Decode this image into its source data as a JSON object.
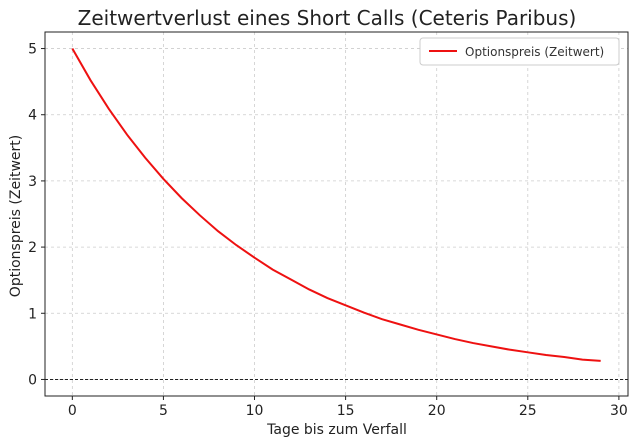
{
  "chart_data": {
    "type": "line",
    "title": "Zeitwertverlust eines Short Calls (Ceteris Paribus)",
    "xlabel": "Tage bis zum Verfall",
    "ylabel": "Optionspreis (Zeitwert)",
    "xlim": [
      -1.5,
      30.5
    ],
    "ylim": [
      -0.25,
      5.25
    ],
    "xticks": [
      0,
      5,
      10,
      15,
      20,
      25,
      30
    ],
    "yticks": [
      0,
      1,
      2,
      3,
      4,
      5
    ],
    "grid": true,
    "legend_position": "top-right",
    "reference_line": {
      "y": 0,
      "style": "dashed",
      "color": "#222222"
    },
    "series": [
      {
        "name": "Optionspreis (Zeitwert)",
        "color": "#ee1111",
        "x": [
          0,
          1,
          2,
          3,
          4,
          5,
          6,
          7,
          8,
          9,
          10,
          11,
          12,
          13,
          14,
          15,
          16,
          17,
          18,
          19,
          20,
          21,
          22,
          23,
          24,
          25,
          26,
          27,
          28,
          29
        ],
        "y": [
          5.0,
          4.52,
          4.09,
          3.7,
          3.35,
          3.03,
          2.74,
          2.48,
          2.24,
          2.03,
          1.84,
          1.66,
          1.51,
          1.36,
          1.23,
          1.12,
          1.01,
          0.91,
          0.83,
          0.75,
          0.68,
          0.61,
          0.55,
          0.5,
          0.45,
          0.41,
          0.37,
          0.34,
          0.3,
          0.28
        ]
      }
    ]
  }
}
